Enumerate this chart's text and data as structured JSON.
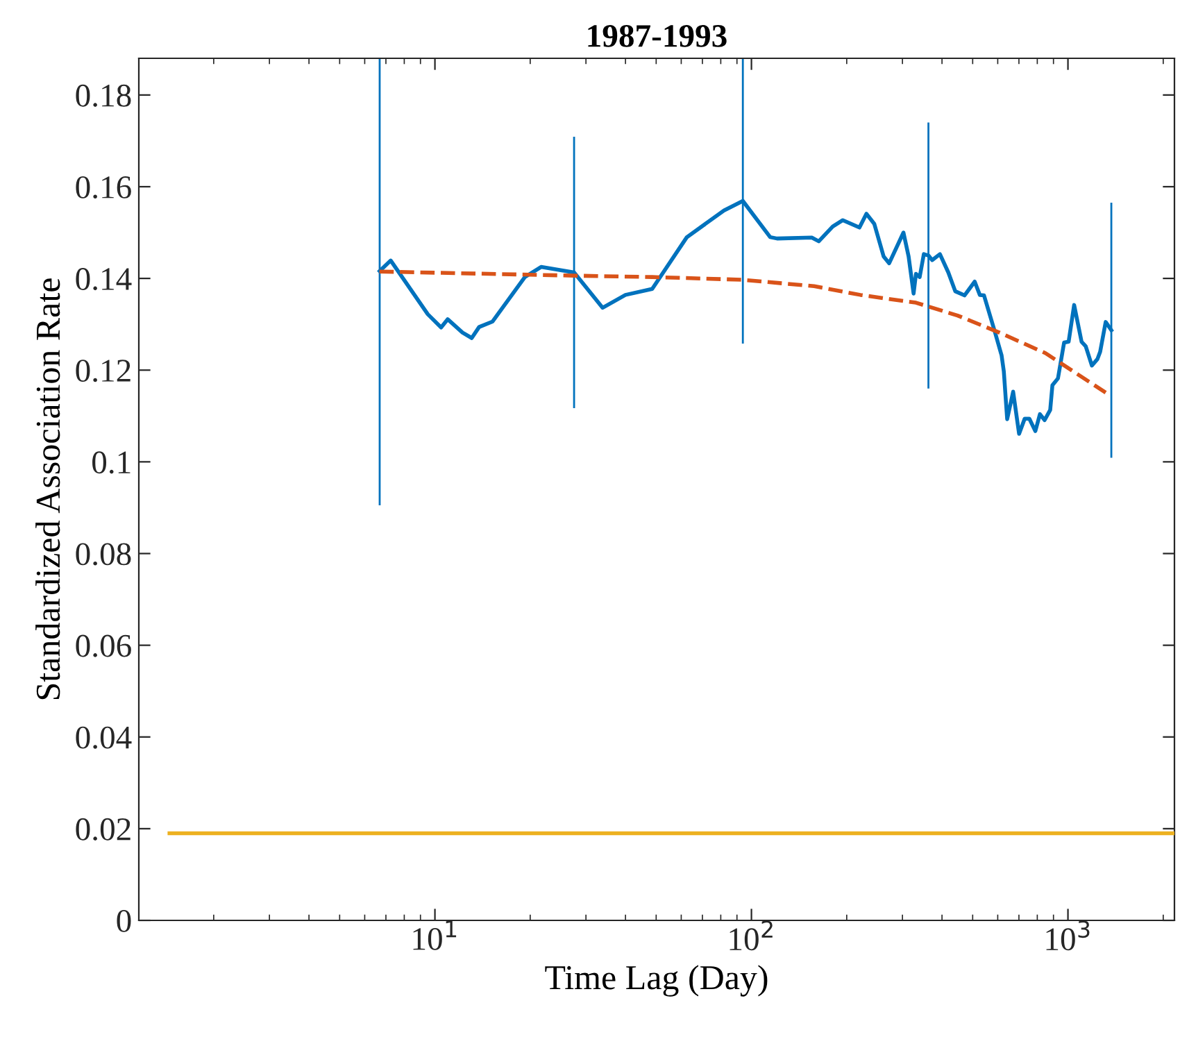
{
  "chart_data": {
    "type": "line",
    "title": "1987-1993",
    "xlabel": "Time Lag (Day)",
    "ylabel": "Standardized Association Rate",
    "log": "x",
    "grid": false,
    "xlim": [
      1.16,
      2170
    ],
    "xticks": [
      {
        "value": 10,
        "label": "10$^{1}$"
      },
      {
        "value": 100,
        "label": "10$^{2}$"
      },
      {
        "value": 1000,
        "label": "10$^{3}$"
      }
    ],
    "ylim": [
      0,
      0.188
    ],
    "yticks": [
      0,
      0.02,
      0.04,
      0.06,
      0.08,
      0.1,
      0.12,
      0.14,
      0.16,
      0.18
    ],
    "series": [
      {
        "color": "#0072bd",
        "line_style": "solid",
        "x": [
          6.69,
          7.25,
          9.49,
          10.46,
          10.97,
          12.22,
          13.07,
          13.79,
          15.21,
          19.24,
          21.65,
          27.52,
          33.88,
          39.99,
          48.58,
          62.52,
          81.89,
          93.94,
          114.6,
          120.5,
          155.1,
          163.2,
          180.6,
          194.4,
          219.4,
          230.8,
          244.4,
          261.6,
          272.3,
          302.2,
          313.7,
          325.3,
          331.0,
          340.1,
          350.5,
          362.4,
          372.4,
          394.0,
          418.8,
          440.5,
          471.2,
          507.4,
          526.7,
          542.9,
          586.7,
          617.1,
          627.2,
          642.6,
          671.2,
          700.9,
          729.9,
          755.3,
          788.8,
          815.5,
          843.9,
          878.8,
          893.1,
          929.9,
          972.2,
          1005,
          1046,
          1104,
          1138,
          1190,
          1239,
          1264,
          1316,
          1371
        ],
        "values": [
          0.1416,
          0.1439,
          0.1322,
          0.1293,
          0.1311,
          0.1282,
          0.127,
          0.1294,
          0.1306,
          0.1403,
          0.1425,
          0.1413,
          0.1336,
          0.1364,
          0.1377,
          0.149,
          0.1548,
          0.1569,
          0.149,
          0.1487,
          0.1489,
          0.1481,
          0.1513,
          0.1527,
          0.1511,
          0.1541,
          0.1519,
          0.1448,
          0.1433,
          0.15,
          0.1448,
          0.1367,
          0.141,
          0.1403,
          0.1453,
          0.145,
          0.144,
          0.1453,
          0.1413,
          0.1372,
          0.1363,
          0.1393,
          0.1364,
          0.1363,
          0.1285,
          0.1232,
          0.1197,
          0.1093,
          0.1153,
          0.1061,
          0.1094,
          0.1094,
          0.1067,
          0.1104,
          0.1091,
          0.1113,
          0.1167,
          0.1182,
          0.126,
          0.1262,
          0.1342,
          0.1262,
          0.1252,
          0.121,
          0.1224,
          0.124,
          0.1305,
          0.1287
        ],
        "errors": [
          0.0511,
          null,
          null,
          null,
          null,
          null,
          null,
          null,
          null,
          null,
          null,
          0.0296,
          null,
          null,
          null,
          null,
          null,
          0.0311,
          null,
          null,
          null,
          null,
          null,
          null,
          null,
          null,
          null,
          null,
          null,
          null,
          null,
          null,
          null,
          null,
          null,
          0.029,
          null,
          null,
          null,
          null,
          null,
          null,
          null,
          null,
          null,
          null,
          null,
          null,
          null,
          null,
          null,
          null,
          null,
          null,
          null,
          null,
          null,
          null,
          null,
          null,
          null,
          null,
          null,
          null,
          null,
          null,
          null,
          0.0278
        ]
      },
      {
        "color": "#d95319",
        "line_style": "dashed",
        "x": [
          6.68,
          27.5,
          48.6,
          94,
          157.8,
          221,
          331,
          448,
          607,
          849,
          1316
        ],
        "values": [
          0.1415,
          0.1406,
          0.1403,
          0.1397,
          0.1383,
          0.1364,
          0.1347,
          0.1319,
          0.1282,
          0.1237,
          0.1151
        ]
      },
      {
        "color": "#edb120",
        "line_style": "solid",
        "x": [
          1.45,
          2170
        ],
        "values": [
          0.019,
          0.019
        ]
      }
    ]
  }
}
